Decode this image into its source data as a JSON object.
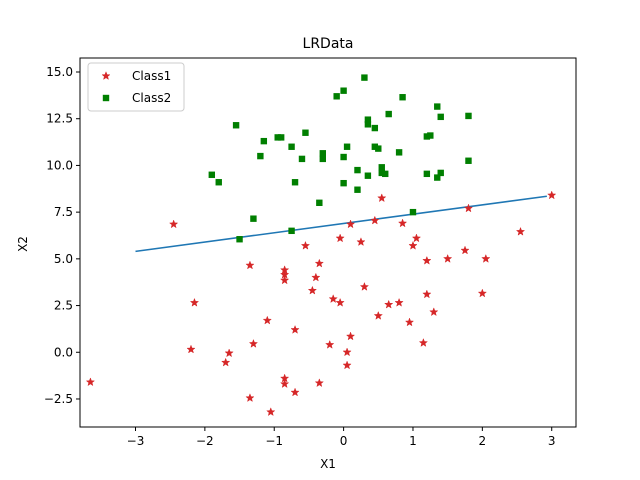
{
  "chart_data": {
    "type": "scatter",
    "title": "LRData",
    "xlabel": "X1",
    "ylabel": "X2",
    "xlim": [
      -3.8,
      3.35
    ],
    "ylim": [
      -4.0,
      15.75
    ],
    "xticks": [
      -3,
      -2,
      -1,
      0,
      1,
      2,
      3
    ],
    "yticks": [
      -2.5,
      0.0,
      2.5,
      5.0,
      7.5,
      10.0,
      12.5,
      15.0
    ],
    "grid": false,
    "legend_position": "top-left",
    "series": [
      {
        "name": "Class1",
        "marker": "star",
        "color": "#d62728",
        "points": [
          [
            -3.65,
            -1.6
          ],
          [
            -2.45,
            6.85
          ],
          [
            -2.15,
            2.65
          ],
          [
            -2.2,
            0.15
          ],
          [
            -1.65,
            -0.05
          ],
          [
            -1.7,
            -0.55
          ],
          [
            -1.35,
            4.65
          ],
          [
            -1.3,
            0.45
          ],
          [
            -1.35,
            -2.45
          ],
          [
            -1.1,
            1.7
          ],
          [
            -1.05,
            -3.2
          ],
          [
            -0.85,
            4.4
          ],
          [
            -0.85,
            4.15
          ],
          [
            -0.85,
            3.85
          ],
          [
            -0.85,
            -1.4
          ],
          [
            -0.85,
            -1.7
          ],
          [
            -0.7,
            1.2
          ],
          [
            -0.7,
            -2.15
          ],
          [
            -0.55,
            5.7
          ],
          [
            -0.45,
            3.3
          ],
          [
            -0.4,
            4.0
          ],
          [
            -0.35,
            4.75
          ],
          [
            -0.35,
            -1.65
          ],
          [
            -0.2,
            0.4
          ],
          [
            -0.15,
            2.85
          ],
          [
            -0.05,
            6.1
          ],
          [
            -0.05,
            2.65
          ],
          [
            0.05,
            0.0
          ],
          [
            0.05,
            -0.7
          ],
          [
            0.1,
            6.85
          ],
          [
            0.1,
            0.85
          ],
          [
            0.25,
            5.9
          ],
          [
            0.3,
            3.5
          ],
          [
            0.45,
            7.05
          ],
          [
            0.5,
            1.95
          ],
          [
            0.55,
            8.25
          ],
          [
            0.65,
            2.55
          ],
          [
            0.8,
            2.65
          ],
          [
            0.85,
            6.9
          ],
          [
            0.95,
            1.6
          ],
          [
            1.0,
            5.7
          ],
          [
            1.05,
            6.1
          ],
          [
            1.15,
            0.5
          ],
          [
            1.2,
            3.1
          ],
          [
            1.2,
            4.9
          ],
          [
            1.3,
            2.15
          ],
          [
            1.5,
            5.0
          ],
          [
            1.75,
            5.45
          ],
          [
            1.8,
            7.7
          ],
          [
            2.0,
            3.15
          ],
          [
            2.05,
            5.0
          ],
          [
            2.55,
            6.45
          ],
          [
            3.0,
            8.4
          ]
        ]
      },
      {
        "name": "Class2",
        "marker": "square",
        "color": "#007f00",
        "points": [
          [
            -1.9,
            9.5
          ],
          [
            -1.8,
            9.1
          ],
          [
            -1.5,
            6.05
          ],
          [
            -1.55,
            12.15
          ],
          [
            -1.3,
            7.15
          ],
          [
            -1.2,
            10.5
          ],
          [
            -1.15,
            11.3
          ],
          [
            -0.95,
            11.5
          ],
          [
            -0.9,
            11.5
          ],
          [
            -0.75,
            11.0
          ],
          [
            -0.7,
            9.1
          ],
          [
            -0.75,
            6.5
          ],
          [
            -0.6,
            10.35
          ],
          [
            -0.55,
            11.75
          ],
          [
            -0.35,
            8.0
          ],
          [
            -0.3,
            10.35
          ],
          [
            -0.3,
            10.65
          ],
          [
            -0.1,
            13.7
          ],
          [
            0.0,
            14.0
          ],
          [
            0.0,
            10.45
          ],
          [
            0.0,
            9.05
          ],
          [
            0.05,
            11.0
          ],
          [
            0.2,
            9.75
          ],
          [
            0.2,
            8.7
          ],
          [
            0.3,
            14.7
          ],
          [
            0.35,
            12.45
          ],
          [
            0.35,
            12.2
          ],
          [
            0.35,
            9.45
          ],
          [
            0.45,
            11.0
          ],
          [
            0.45,
            12.0
          ],
          [
            0.5,
            10.9
          ],
          [
            0.55,
            9.6
          ],
          [
            0.55,
            9.9
          ],
          [
            0.6,
            9.55
          ],
          [
            0.65,
            12.75
          ],
          [
            0.8,
            10.7
          ],
          [
            0.85,
            13.65
          ],
          [
            1.0,
            7.5
          ],
          [
            1.2,
            11.55
          ],
          [
            1.25,
            11.6
          ],
          [
            1.2,
            9.55
          ],
          [
            1.35,
            13.15
          ],
          [
            1.4,
            12.6
          ],
          [
            1.35,
            9.35
          ],
          [
            1.4,
            9.6
          ],
          [
            1.8,
            12.65
          ],
          [
            1.8,
            10.25
          ]
        ]
      }
    ],
    "decision_line": {
      "color": "#1f77b4",
      "points": [
        [
          -3.0,
          5.4
        ],
        [
          2.93,
          8.35
        ]
      ]
    }
  }
}
